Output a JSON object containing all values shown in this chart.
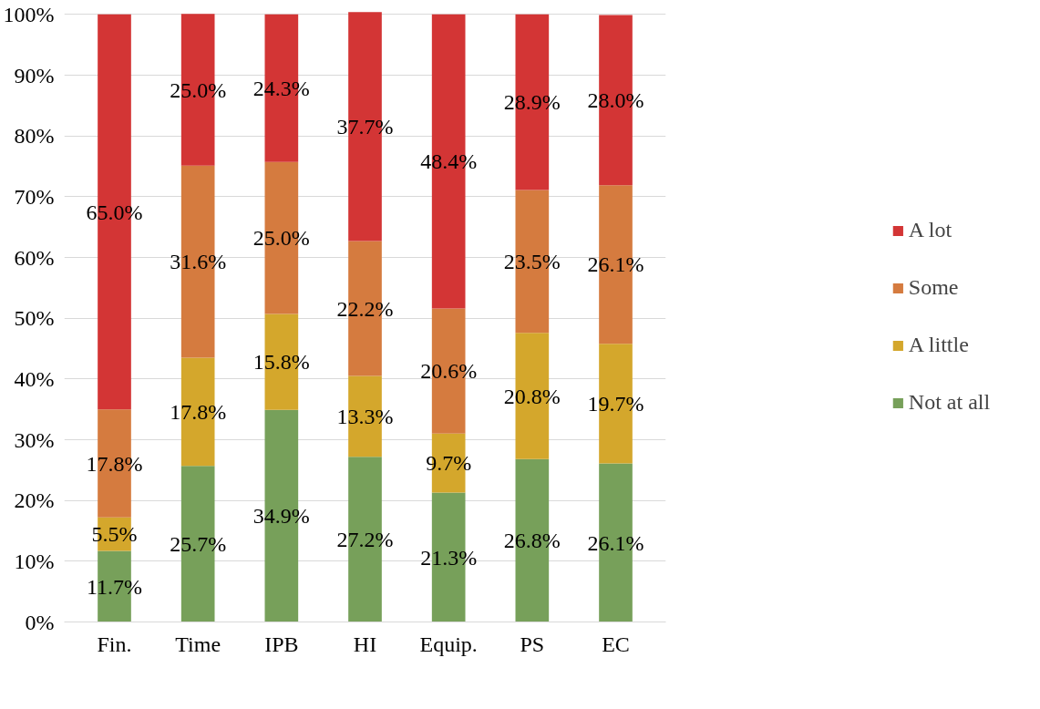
{
  "chart_data": {
    "type": "bar",
    "stacked": true,
    "categories": [
      "Fin.",
      "Time",
      "IPB",
      "HI",
      "Equip.",
      "PS",
      "EC"
    ],
    "series": [
      {
        "name": "Not at all",
        "color": "#77a05a",
        "values": [
          11.7,
          25.7,
          34.9,
          27.2,
          21.3,
          26.8,
          26.1
        ],
        "value_labels": [
          "11.7%",
          "25.7%",
          "34.9%",
          "27.2%",
          "21.3%",
          "26.8%",
          "26.1%"
        ]
      },
      {
        "name": "A little",
        "color": "#d4a72c",
        "values": [
          5.5,
          17.8,
          15.8,
          13.3,
          9.7,
          20.8,
          19.7
        ],
        "value_labels": [
          "5.5%",
          "17.8%",
          "15.8%",
          "13.3%",
          "9.7%",
          "20.8%",
          "19.7%"
        ]
      },
      {
        "name": "Some",
        "color": "#d57b3f",
        "values": [
          17.8,
          31.6,
          25.0,
          22.2,
          20.6,
          23.5,
          26.1
        ],
        "value_labels": [
          "17.8%",
          "31.6%",
          "25.0%",
          "22.2%",
          "20.6%",
          "23.5%",
          "26.1%"
        ]
      },
      {
        "name": "A lot",
        "color": "#d33535",
        "values": [
          65.0,
          25.0,
          24.3,
          37.7,
          48.4,
          28.9,
          28.0
        ],
        "value_labels": [
          "65.0%",
          "25.0%",
          "24.3%",
          "37.7%",
          "48.4%",
          "28.9%",
          "28.0%"
        ]
      }
    ],
    "ylim": [
      0,
      100.5
    ],
    "yticks": [
      {
        "value": 0,
        "label": "0%"
      },
      {
        "value": 10,
        "label": "10%"
      },
      {
        "value": 20,
        "label": "20%"
      },
      {
        "value": 30,
        "label": "30%"
      },
      {
        "value": 40,
        "label": "40%"
      },
      {
        "value": 50,
        "label": "50%"
      },
      {
        "value": 60,
        "label": "60%"
      },
      {
        "value": 70,
        "label": "70%"
      },
      {
        "value": 80,
        "label": "80%"
      },
      {
        "value": 90,
        "label": "90%"
      },
      {
        "value": 100,
        "label": "100%"
      }
    ],
    "grid": "y",
    "legend": "right"
  }
}
